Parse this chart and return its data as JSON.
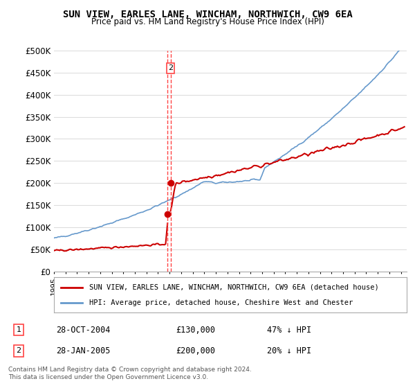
{
  "title": "SUN VIEW, EARLES LANE, WINCHAM, NORTHWICH, CW9 6EA",
  "subtitle": "Price paid vs. HM Land Registry's House Price Index (HPI)",
  "ylabel_ticks": [
    "£0",
    "£50K",
    "£100K",
    "£150K",
    "£200K",
    "£250K",
    "£300K",
    "£350K",
    "£400K",
    "£450K",
    "£500K"
  ],
  "ylim": [
    0,
    500000
  ],
  "ytick_vals": [
    0,
    50000,
    100000,
    150000,
    200000,
    250000,
    300000,
    350000,
    400000,
    450000,
    500000
  ],
  "xlim_start": 1995.0,
  "xlim_end": 2025.5,
  "transaction1": {
    "date_num": 2004.82,
    "price": 130000,
    "label": "1",
    "date_str": "28-OCT-2004",
    "amount": "£130,000",
    "hpi_diff": "47% ↓ HPI"
  },
  "transaction2": {
    "date_num": 2005.08,
    "price": 200000,
    "label": "2",
    "date_str": "28-JAN-2005",
    "amount": "£200,000",
    "hpi_diff": "20% ↓ HPI"
  },
  "legend_red_label": "SUN VIEW, EARLES LANE, WINCHAM, NORTHWICH, CW9 6EA (detached house)",
  "legend_blue_label": "HPI: Average price, detached house, Cheshire West and Chester",
  "footer": "Contains HM Land Registry data © Crown copyright and database right 2024.\nThis data is licensed under the Open Government Licence v3.0.",
  "red_color": "#cc0000",
  "blue_color": "#6699cc",
  "grid_color": "#dddddd",
  "background_color": "#ffffff",
  "transaction_line_color": "#ff4444"
}
